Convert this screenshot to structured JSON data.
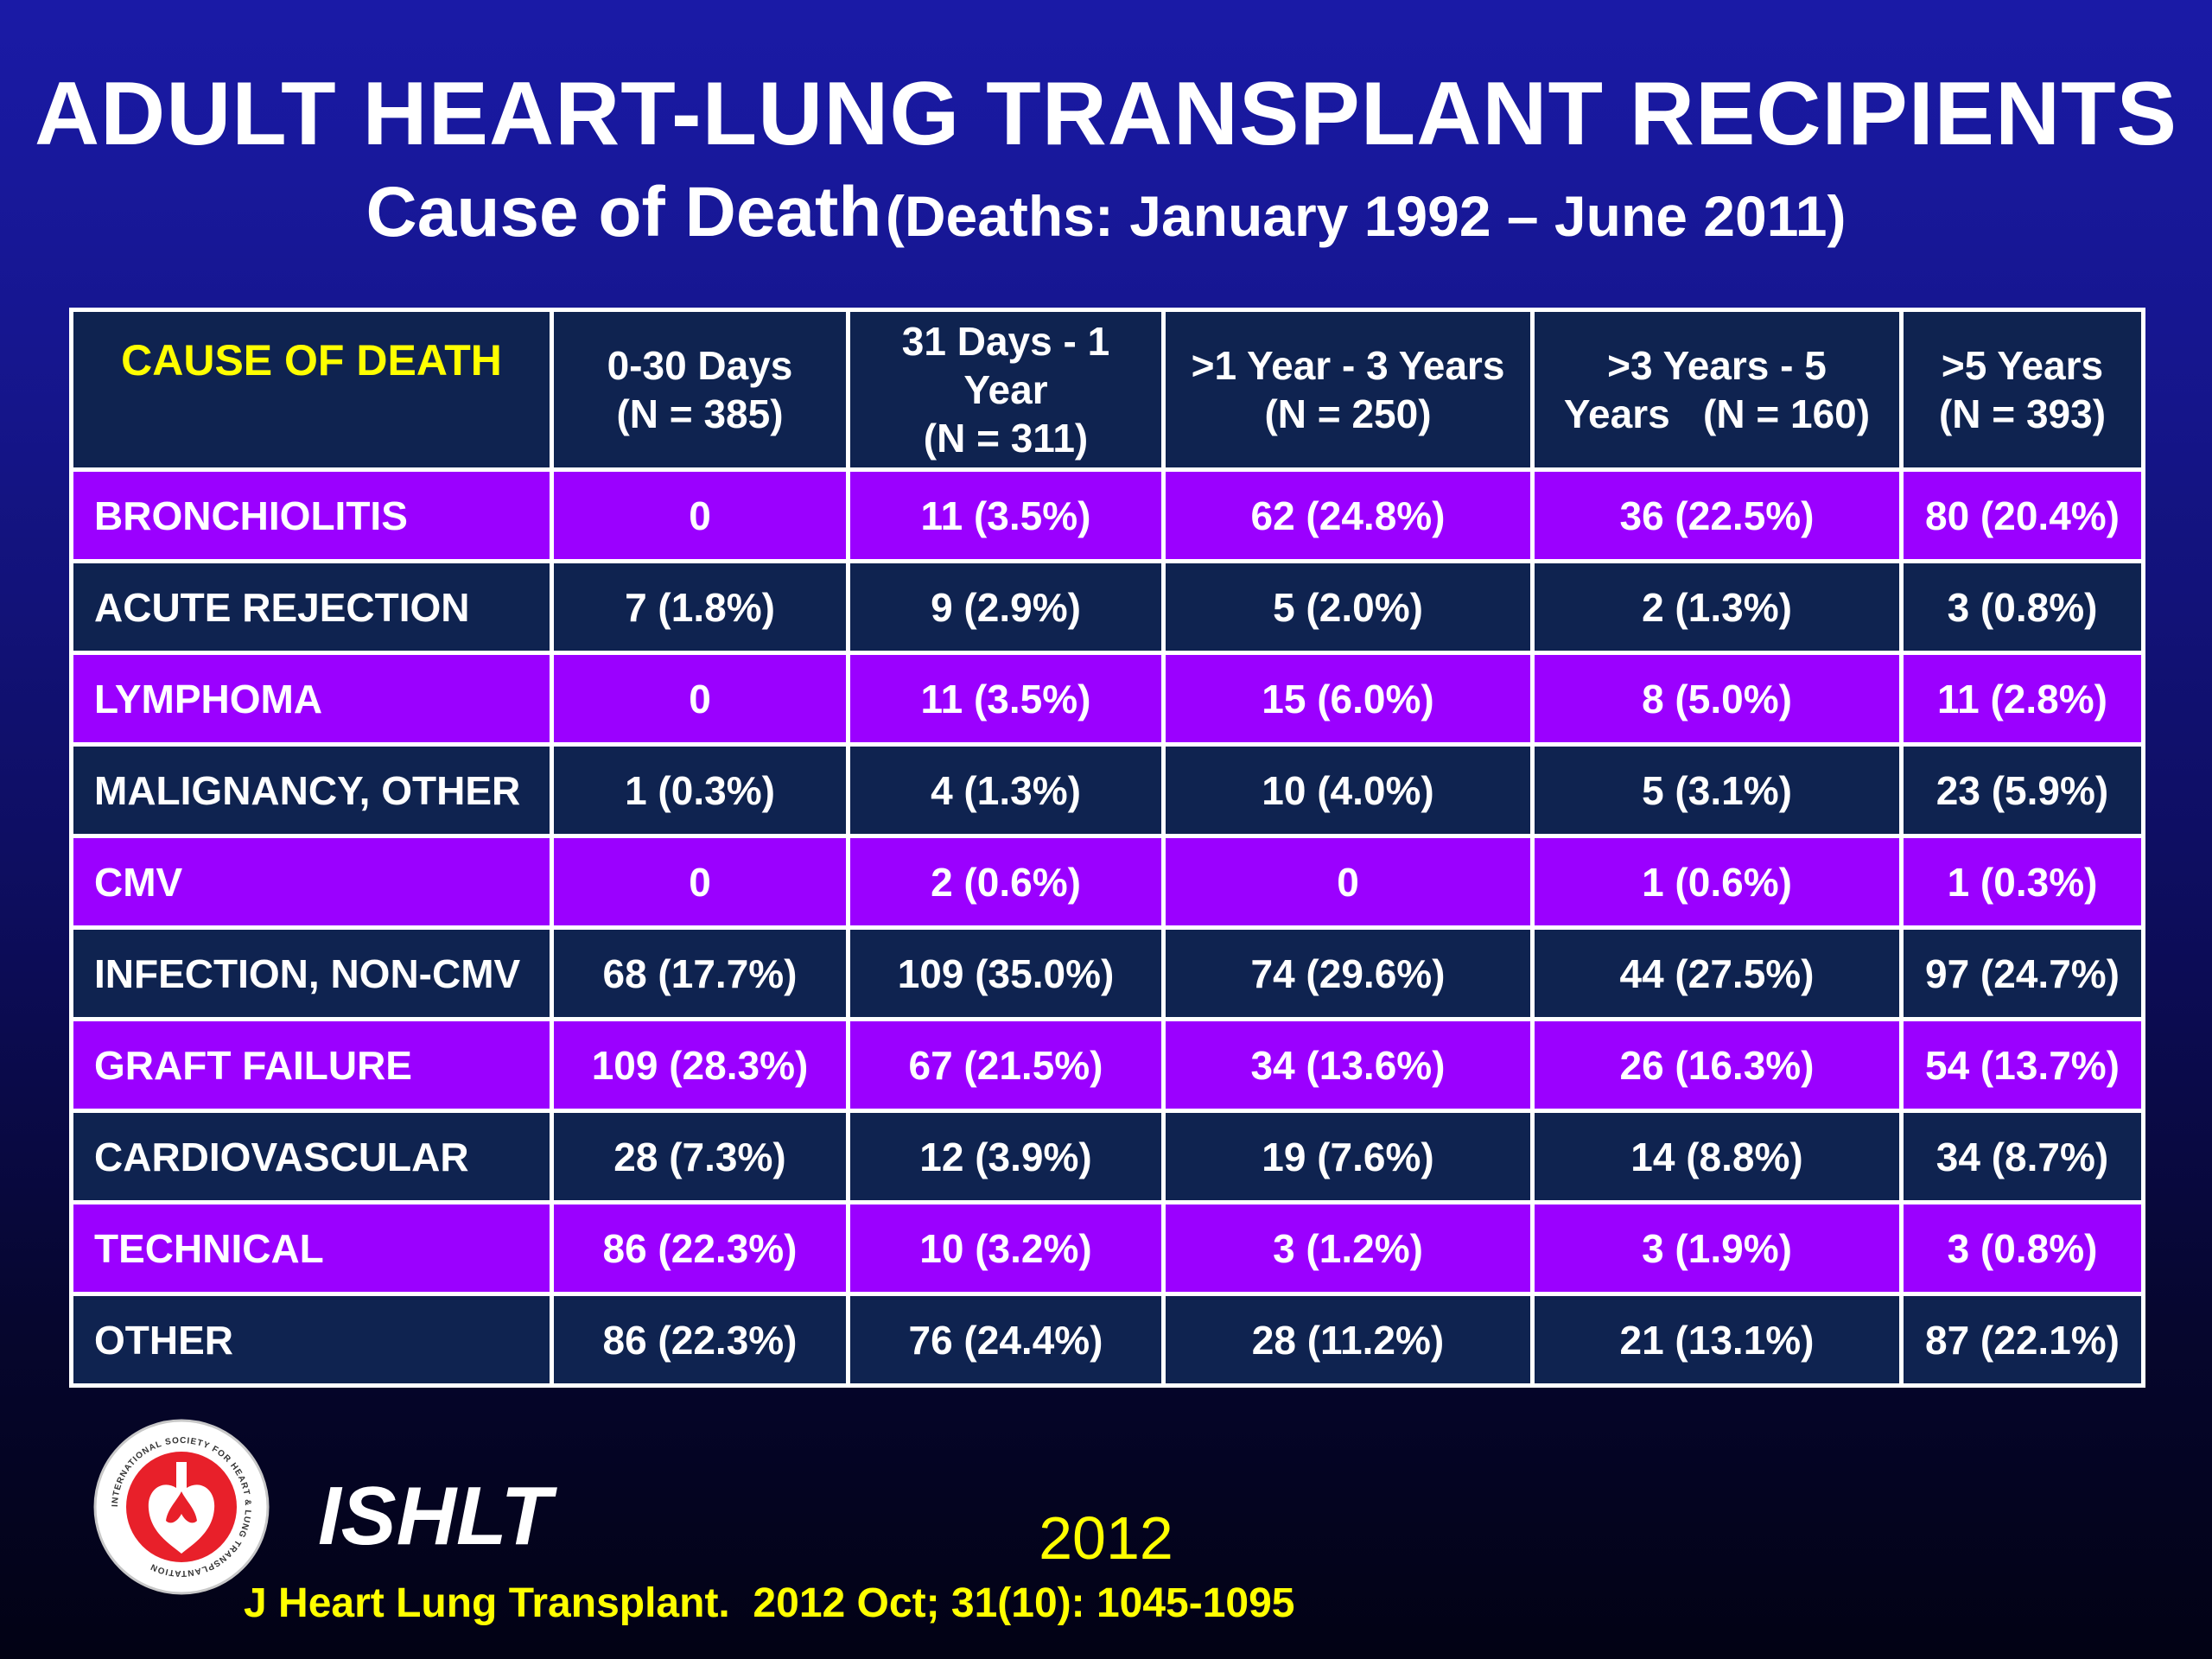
{
  "slide": {
    "title": "ADULT HEART-LUNG TRANSPLANT RECIPIENTS",
    "subtitle_main": "Cause of Death",
    "subtitle_paren": "(Deaths: January 1992 – June 2011)"
  },
  "table": {
    "cause_header": "CAUSE OF DEATH",
    "columns": [
      {
        "line1": "0-30 Days",
        "line2": "(N = 385)"
      },
      {
        "line1": "31 Days - 1 Year",
        "line2": "(N = 311)"
      },
      {
        "line1": ">1 Year - 3 Years",
        "line2": "(N = 250)"
      },
      {
        "line1": ">3 Years - 5",
        "line2": "Years   (N = 160)"
      },
      {
        "line1": ">5 Years",
        "line2": "(N = 393)"
      }
    ],
    "rows": [
      {
        "cause": "BRONCHIOLITIS",
        "values": [
          "0",
          "11 (3.5%)",
          "62 (24.8%)",
          "36 (22.5%)",
          "80 (20.4%)"
        ]
      },
      {
        "cause": "ACUTE REJECTION",
        "values": [
          "7 (1.8%)",
          "9 (2.9%)",
          "5 (2.0%)",
          "2 (1.3%)",
          "3 (0.8%)"
        ]
      },
      {
        "cause": "LYMPHOMA",
        "values": [
          "0",
          "11 (3.5%)",
          "15 (6.0%)",
          "8 (5.0%)",
          "11 (2.8%)"
        ]
      },
      {
        "cause": "MALIGNANCY, OTHER",
        "values": [
          "1 (0.3%)",
          "4 (1.3%)",
          "10 (4.0%)",
          "5 (3.1%)",
          "23 (5.9%)"
        ]
      },
      {
        "cause": "CMV",
        "values": [
          "0",
          "2 (0.6%)",
          "0",
          "1 (0.6%)",
          "1 (0.3%)"
        ]
      },
      {
        "cause": "INFECTION, NON-CMV",
        "values": [
          "68 (17.7%)",
          "109 (35.0%)",
          "74 (29.6%)",
          "44 (27.5%)",
          "97 (24.7%)"
        ]
      },
      {
        "cause": "GRAFT FAILURE",
        "values": [
          "109 (28.3%)",
          "67 (21.5%)",
          "34 (13.6%)",
          "26 (16.3%)",
          "54 (13.7%)"
        ]
      },
      {
        "cause": "CARDIOVASCULAR",
        "values": [
          "28 (7.3%)",
          "12 (3.9%)",
          "19 (7.6%)",
          "14 (8.8%)",
          "34 (8.7%)"
        ]
      },
      {
        "cause": "TECHNICAL",
        "values": [
          "86 (22.3%)",
          "10 (3.2%)",
          "3 (1.2%)",
          "3 (1.9%)",
          "3 (0.8%)"
        ]
      },
      {
        "cause": "OTHER",
        "values": [
          "86 (22.3%)",
          "76 (24.4%)",
          "28 (11.2%)",
          "21 (13.1%)",
          "87 (22.1%)"
        ]
      }
    ]
  },
  "footer": {
    "logo_icon": "ishlt-seal-icon",
    "logo_ring_text": "INTERNATIONAL SOCIETY FOR HEART & LUNG TRANSPLANTATION",
    "org_name": "ISHLT",
    "year": "2012",
    "citation": "J Heart Lung Transplant.  2012 Oct; 31(10): 1045-1095"
  },
  "colors": {
    "row_purple": "#9b00ff",
    "row_navy": "#0f2350",
    "header_text_yellow": "#ffff00",
    "footer_text_yellow": "#ffff00",
    "logo_red": "#e8202a"
  }
}
